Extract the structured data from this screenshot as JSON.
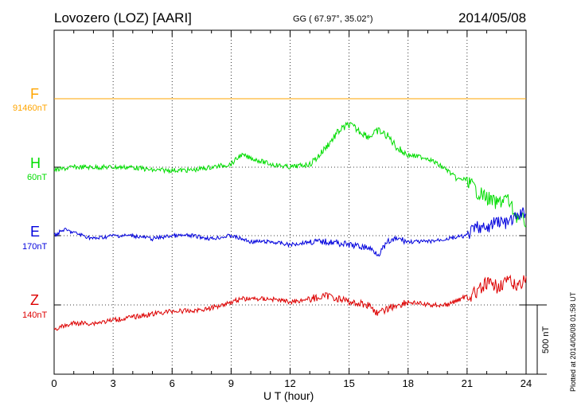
{
  "header": {
    "station": "Lovozero (LOZ)  [AARI]",
    "coords": "GG ( 67.97°,  35.02°)",
    "date": "2014/05/08"
  },
  "footer": {
    "plotted": "Plotted at 2014/06/08 01:58 UT",
    "bar_label": "500 nT"
  },
  "chart_data": {
    "type": "line",
    "xlabel": "U T (hour)",
    "xlim": [
      0,
      24
    ],
    "xticks": [
      "0",
      "3",
      "6",
      "9",
      "12",
      "15",
      "18",
      "21",
      "24"
    ],
    "grid": "dotted",
    "colors": {
      "F": "#ffa500",
      "H": "#00dd00",
      "E": "#0000dd",
      "Z": "#dd0000"
    },
    "series": [
      {
        "name": "F",
        "scale": "91460nT",
        "x": [
          0,
          24
        ],
        "values": [
          0,
          0
        ]
      },
      {
        "name": "H",
        "scale": "60nT",
        "x": [
          0,
          1,
          2,
          3,
          4,
          5,
          6,
          7,
          8,
          9,
          9.5,
          10,
          10.5,
          11,
          12,
          13,
          13.5,
          14,
          14.5,
          15,
          15.5,
          16,
          16.5,
          17,
          17.5,
          18,
          19,
          20,
          20.5,
          21,
          21.5,
          22,
          22.5,
          23,
          23.5,
          24
        ],
        "values": [
          -10,
          0,
          0,
          0,
          0,
          -10,
          -10,
          -10,
          0,
          10,
          40,
          30,
          20,
          10,
          0,
          10,
          40,
          80,
          120,
          140,
          120,
          100,
          120,
          100,
          60,
          40,
          30,
          -10,
          -40,
          -40,
          -80,
          -100,
          -120,
          -100,
          -160,
          -180
        ]
      },
      {
        "name": "E",
        "scale": "170nT",
        "x": [
          0,
          0.5,
          1,
          2,
          3,
          4,
          5,
          6,
          7,
          8,
          9,
          10,
          11,
          12,
          13,
          14,
          15,
          16,
          16.5,
          17,
          17.5,
          18,
          19,
          20,
          21,
          21.5,
          22,
          22.5,
          23,
          23.5,
          24
        ],
        "values": [
          0,
          20,
          10,
          -10,
          0,
          0,
          -10,
          0,
          0,
          -10,
          0,
          -20,
          -20,
          -30,
          -20,
          -20,
          -30,
          -40,
          -60,
          -20,
          -10,
          -20,
          -20,
          -10,
          0,
          30,
          20,
          50,
          40,
          60,
          80
        ]
      },
      {
        "name": "Z",
        "scale": "140nT",
        "x": [
          0,
          1,
          2,
          3,
          4,
          5,
          6,
          7,
          8,
          9,
          9.5,
          10,
          11,
          12,
          13,
          14,
          15,
          16,
          16.5,
          17,
          17.5,
          18,
          19,
          20,
          21,
          21.5,
          22,
          22.5,
          23,
          23.5,
          24
        ],
        "values": [
          -80,
          -60,
          -60,
          -50,
          -40,
          -30,
          -20,
          -20,
          -10,
          10,
          20,
          20,
          20,
          10,
          20,
          30,
          10,
          0,
          -30,
          -10,
          0,
          10,
          0,
          0,
          30,
          40,
          70,
          60,
          80,
          60,
          90
        ]
      }
    ]
  }
}
